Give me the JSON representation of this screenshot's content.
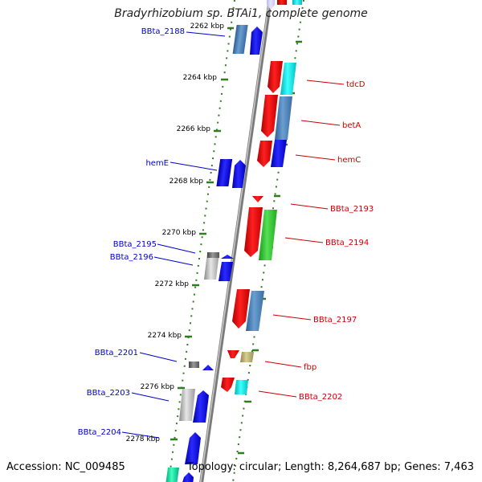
{
  "title": "Bradyrhizobium sp. BTAi1, complete genome",
  "footer": {
    "accession": "Accession: NC_009485",
    "summary": "Topology: circular; Length: 8,264,687 bp; Genes: 7,463"
  },
  "axis": [
    {
      "label": "2262 kbp"
    },
    {
      "label": "2264 kbp"
    },
    {
      "label": "2266 kbp"
    },
    {
      "label": "2268 kbp"
    },
    {
      "label": "2270 kbp"
    },
    {
      "label": "2272 kbp"
    },
    {
      "label": "2274 kbp"
    },
    {
      "label": "2276 kbp"
    },
    {
      "label": "2278 kbp"
    }
  ],
  "genes": {
    "left": [
      {
        "name": "BBta_2188",
        "color": "#0000cc"
      },
      {
        "name": "hemE",
        "color": "#0000cc"
      },
      {
        "name": "BBta_2195",
        "color": "#0000cc"
      },
      {
        "name": "BBta_2196",
        "color": "#0000cc"
      },
      {
        "name": "BBta_2201",
        "color": "#0000cc"
      },
      {
        "name": "BBta_2203",
        "color": "#0000cc"
      },
      {
        "name": "BBta_2204",
        "color": "#0000cc"
      }
    ],
    "right": [
      {
        "name": "tdcD",
        "color": "#cc0000"
      },
      {
        "name": "betA",
        "color": "#cc0000"
      },
      {
        "name": "hemC",
        "color": "#cc0000"
      },
      {
        "name": "BBta_2193",
        "color": "#cc0000"
      },
      {
        "name": "BBta_2194",
        "color": "#cc0000"
      },
      {
        "name": "BBta_2197",
        "color": "#cc0000"
      },
      {
        "name": "fbp",
        "color": "#cc0000"
      },
      {
        "name": "BBta_2202",
        "color": "#cc0000"
      }
    ]
  },
  "colors": {
    "backbone": "#888888",
    "tick": "#2e7d1e",
    "forward_strand": "#0000ff",
    "reverse_strand": "#ff0000",
    "steelblue": "#4a7fb8",
    "cyan": "#00e5e5",
    "green": "#33cc33",
    "gray": "#bbbbbb",
    "olive": "#b8b070",
    "teal": "#00e0a0"
  }
}
